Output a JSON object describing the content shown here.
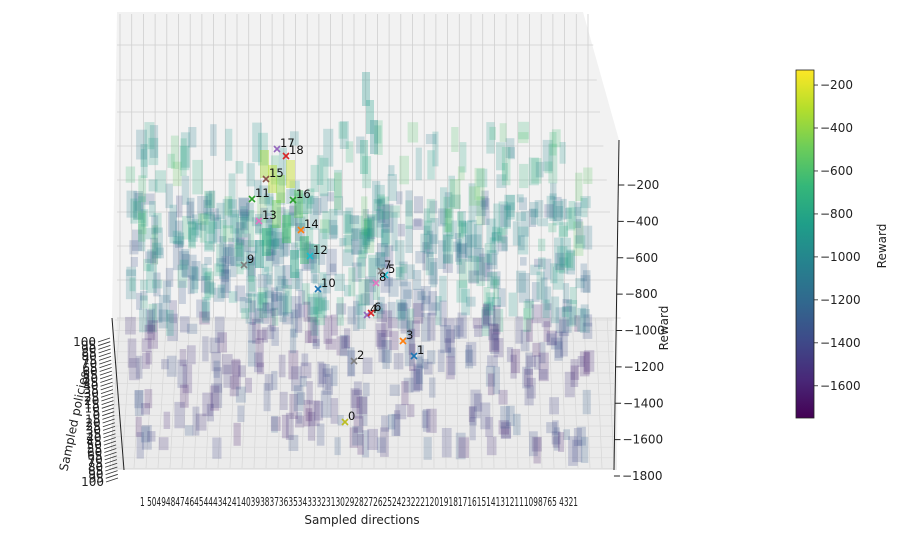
{
  "chart_data": {
    "type": "3d-bar",
    "xlabel": "Sampled directions",
    "ylabel": "Sampled policies",
    "zlabel": "Reward",
    "colorbar_label": "Reward",
    "colormap": "viridis",
    "zlim": [
      -1800,
      -100
    ],
    "z_ticks": [
      -200,
      -400,
      -600,
      -800,
      -1000,
      -1200,
      -1400,
      -1600,
      -1800
    ],
    "colorbar_ticks": [
      -200,
      -400,
      -600,
      -800,
      -1000,
      -1200,
      -1400,
      -1600
    ],
    "colorbar_range": [
      -1750,
      -130
    ],
    "direction_ticks_text": "1 504948474645444342414039383736353433323130292827262524232221201918171615141312111098765 4321",
    "policy_ticks": [
      "100",
      "95",
      "90",
      "85",
      "80",
      "75",
      "70",
      "65",
      "60",
      "55",
      "50",
      "45",
      "40",
      "35",
      "30",
      "25",
      "20",
      "15",
      "10",
      "5",
      "0",
      "15",
      "20",
      "25",
      "30",
      "35",
      "40",
      "45",
      "50",
      "55",
      "60",
      "65",
      "70",
      "75",
      "80",
      "85",
      "90",
      "95",
      "100"
    ],
    "grid": true,
    "markers": [
      {
        "label": "0",
        "color": "#bcbd22"
      },
      {
        "label": "1",
        "color": "#1f77b4"
      },
      {
        "label": "2",
        "color": "#7f7f7f"
      },
      {
        "label": "3",
        "color": "#ff7f0e"
      },
      {
        "label": "4",
        "color": "#9467bd"
      },
      {
        "label": "5",
        "color": "#17becf"
      },
      {
        "label": "6",
        "color": "#d62728"
      },
      {
        "label": "7",
        "color": "#7f7f7f"
      },
      {
        "label": "8",
        "color": "#e377c2"
      },
      {
        "label": "9",
        "color": "#7f7f7f"
      },
      {
        "label": "10",
        "color": "#1f77b4"
      },
      {
        "label": "11",
        "color": "#2ca02c"
      },
      {
        "label": "12",
        "color": "#17becf"
      },
      {
        "label": "13",
        "color": "#e377c2"
      },
      {
        "label": "14",
        "color": "#ff7f0e"
      },
      {
        "label": "15",
        "color": "#8c564b"
      },
      {
        "label": "16",
        "color": "#2ca02c"
      },
      {
        "label": "17",
        "color": "#9467bd"
      },
      {
        "label": "18",
        "color": "#d62728"
      }
    ]
  }
}
